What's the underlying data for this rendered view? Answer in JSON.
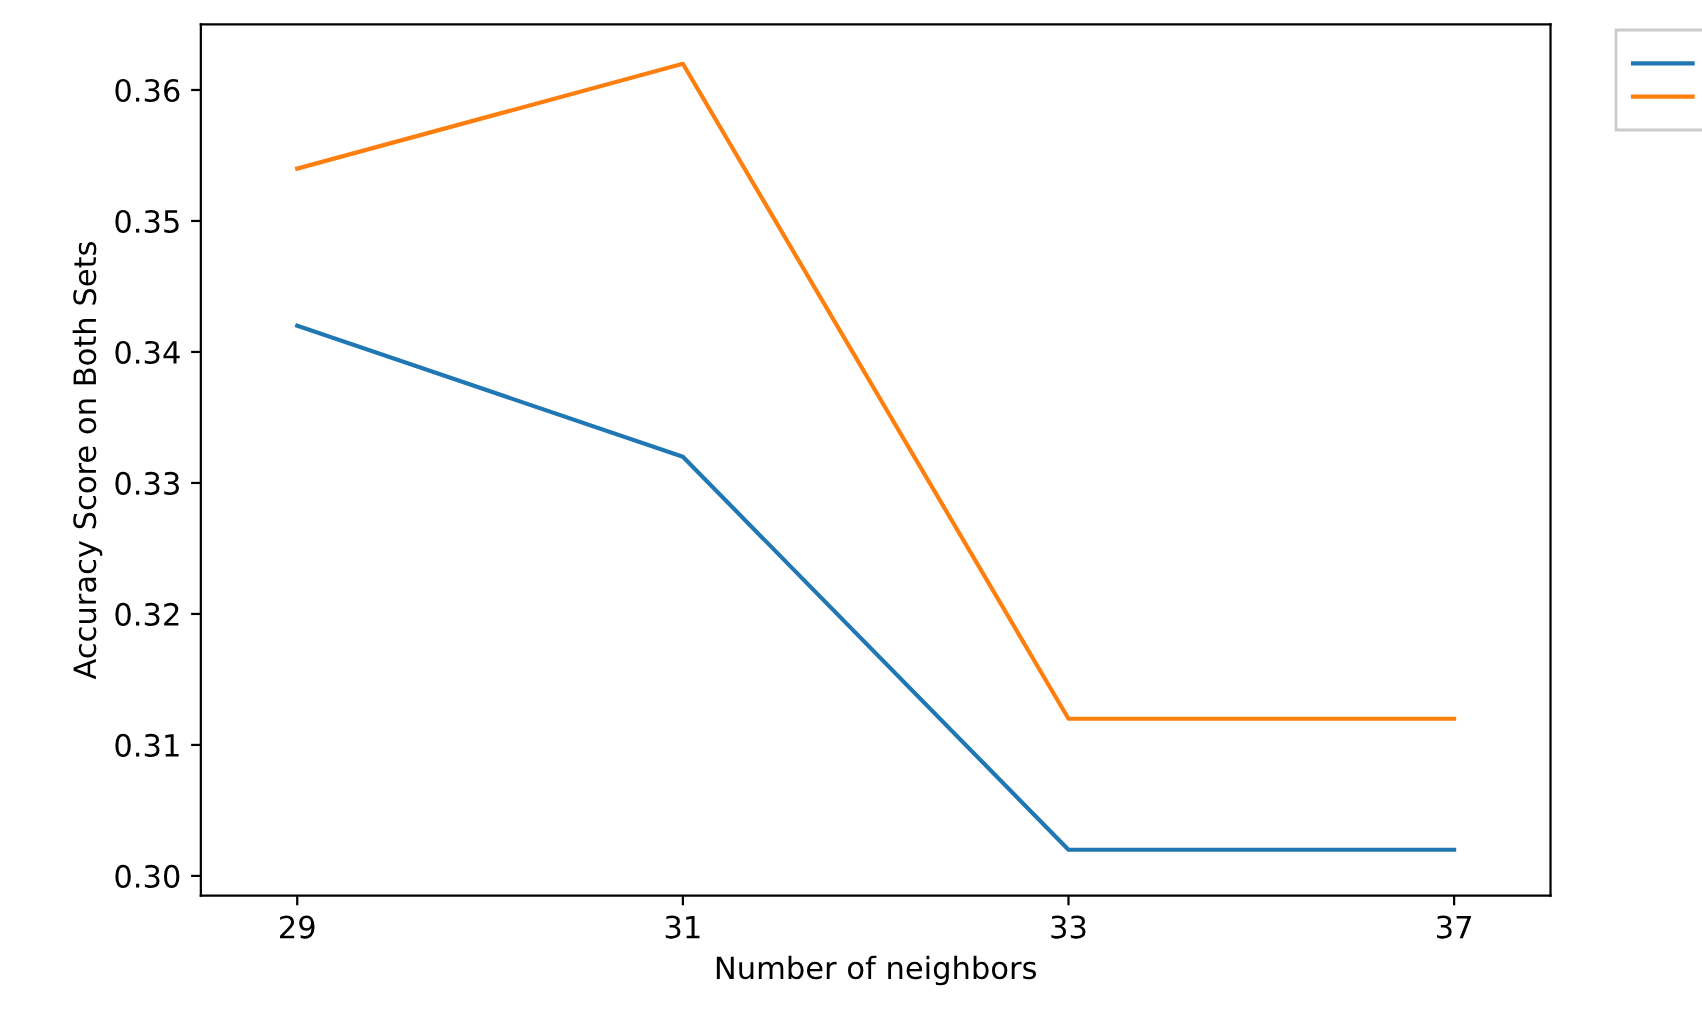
{
  "chart_data": {
    "type": "line",
    "xlabel": "Number of neighbors",
    "ylabel": "Accuracy Score on Both Sets",
    "categories": [
      "29",
      "31",
      "33",
      "37"
    ],
    "series": [
      {
        "color": "#1f77b4",
        "values": [
          0.342,
          0.332,
          0.302,
          0.302
        ]
      },
      {
        "color": "#ff7f0e",
        "values": [
          0.354,
          0.362,
          0.312,
          0.312
        ]
      }
    ],
    "ylim": [
      0.2985,
      0.365
    ],
    "yticks": [
      {
        "value": 0.3,
        "label": "0.30"
      },
      0.31,
      0.32,
      0.33,
      0.34,
      0.35,
      0.36
    ],
    "grid": false
  }
}
